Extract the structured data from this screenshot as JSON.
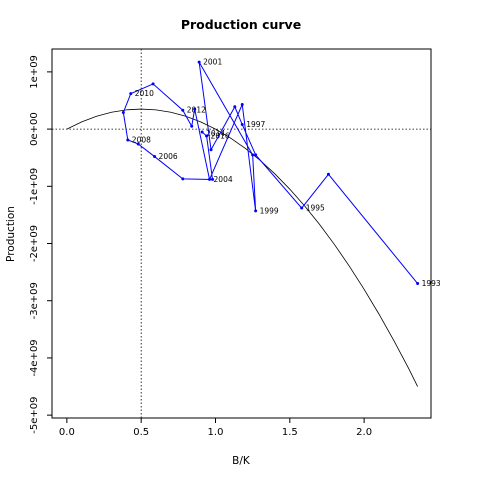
{
  "chart_data": {
    "type": "line",
    "title": "Production curve",
    "xlabel": "B/K",
    "ylabel": "Production",
    "xlim": [
      -0.1,
      2.45
    ],
    "ylim": [
      -5050000000.0,
      1400000000.0
    ],
    "x_ticks": [
      0.0,
      0.5,
      1.0,
      1.5,
      2.0
    ],
    "x_tick_labels": [
      "0.0",
      "0.5",
      "1.0",
      "1.5",
      "2.0"
    ],
    "y_ticks": [
      -5000000000.0,
      -4000000000.0,
      -3000000000.0,
      -2000000000.0,
      -1000000000.0,
      0,
      1000000000.0
    ],
    "y_tick_labels": [
      "-5e+09",
      "-4e+09",
      "-3e+09",
      "-2e+09",
      "-1e+09",
      "0e+00",
      "1e+09"
    ],
    "reference_lines": {
      "vertical_x": 0.5,
      "horizontal_y": 0
    },
    "curve": {
      "color": "#000000",
      "x": [
        0.0,
        0.1,
        0.2,
        0.3,
        0.4,
        0.5,
        0.6,
        0.7,
        0.8,
        0.9,
        1.0,
        1.1,
        1.2,
        1.3,
        1.4,
        1.5,
        1.6,
        1.7,
        1.8,
        1.9,
        2.0,
        2.1,
        2.2,
        2.3,
        2.36
      ],
      "y": [
        0,
        126000000.0,
        224000000.0,
        294000000.0,
        336000000.0,
        350000000.0,
        336000000.0,
        294000000.0,
        224000000.0,
        126000000.0,
        0,
        -154000000.0,
        -336000000.0,
        -546000000.0,
        -784000000.0,
        -1050000000.0,
        -1344000000.0,
        -1666000000.0,
        -2016000000.0,
        -2394000000.0,
        -2800000000.0,
        -3234000000.0,
        -3696000000.0,
        -4186000000.0,
        -4500000000.0
      ]
    },
    "series": [
      {
        "color": "#0000ff",
        "x": [
          2.36,
          1.76,
          1.58,
          1.27,
          1.18,
          1.13,
          0.97,
          0.89,
          1.25,
          1.27,
          1.18,
          0.96,
          0.86,
          0.84,
          0.78,
          0.58,
          0.43,
          0.38,
          0.41,
          0.48,
          0.59,
          0.78,
          0.98,
          0.94,
          0.91
        ],
        "y": [
          -2700000000.0,
          -790000000.0,
          -1380000000.0,
          -450000000.0,
          80000000.0,
          390000000.0,
          -360000000.0,
          1170000000.0,
          -450000000.0,
          -1430000000.0,
          430000000.0,
          -880000000.0,
          350000000.0,
          50000000.0,
          330000000.0,
          790000000.0,
          620000000.0,
          290000000.0,
          -190000000.0,
          -260000000.0,
          -480000000.0,
          -870000000.0,
          -880000000.0,
          -120000000.0,
          -50000000.0
        ],
        "point_labels": [
          "1993",
          "",
          "1995",
          "",
          "1997",
          "",
          "",
          "2001",
          "",
          "1999",
          "",
          "2004",
          "",
          "",
          "2012",
          "",
          "2010",
          "",
          "2008",
          "",
          "2006",
          "",
          "",
          "2016",
          "2014"
        ],
        "label_pos": [
          "right",
          "",
          "right",
          "",
          "right",
          "",
          "",
          "right",
          "",
          "right",
          "",
          "right",
          "",
          "",
          "right",
          "",
          "right",
          "",
          "right",
          "",
          "right",
          "",
          "",
          "right",
          "below-right"
        ]
      }
    ]
  }
}
